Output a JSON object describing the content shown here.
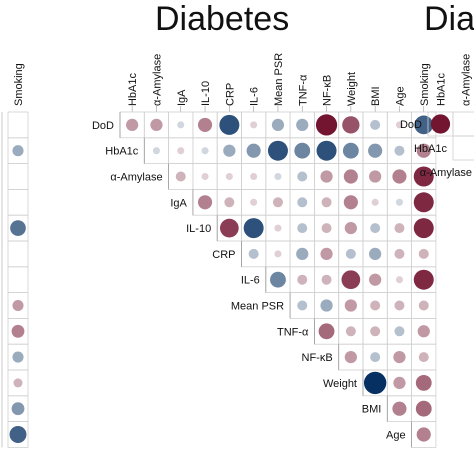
{
  "titles": {
    "center": "Diabetes",
    "right": "Dia"
  },
  "chart_data": {
    "type": "heatmap",
    "title": "Diabetes",
    "variables": [
      "DoD",
      "HbA1c",
      "α-Amylase",
      "IgA",
      "IL-10",
      "CRP",
      "IL-6",
      "Mean PSR",
      "TNF-α",
      "NF-κB",
      "Weight",
      "BMI",
      "Age",
      "Smoking"
    ],
    "column_labels": [
      "HbA1c",
      "α-Amylase",
      "IgA",
      "IL-10",
      "CRP",
      "IL-6",
      "Mean PSR",
      "TNF-α",
      "NF-κB",
      "Weight",
      "BMI",
      "Age",
      "Smoking"
    ],
    "row_labels": [
      "DoD",
      "HbA1c",
      "α-Amylase",
      "IgA",
      "IL-10",
      "CRP",
      "IL-6",
      "Mean PSR",
      "TNF-α",
      "NF-κB",
      "Weight",
      "BMI",
      "Age"
    ],
    "correlations": [
      [
        0.3,
        0.3,
        -0.1,
        0.4,
        -0.8,
        0.1,
        -0.3,
        -0.3,
        0.9,
        0.6,
        -0.2,
        0.1,
        -0.7
      ],
      [
        null,
        -0.1,
        0.1,
        -0.1,
        -0.3,
        -0.4,
        -0.8,
        -0.5,
        -0.8,
        -0.5,
        -0.4,
        -0.2,
        0.4
      ],
      [
        null,
        null,
        0.2,
        0.1,
        0.1,
        0.1,
        -0.1,
        -0.2,
        0.3,
        0.4,
        0.3,
        0.4,
        0.8
      ],
      [
        null,
        null,
        null,
        0.4,
        0.2,
        0.1,
        0.2,
        -0.2,
        0.2,
        0.4,
        0.1,
        -0.1,
        0.8
      ],
      [
        null,
        null,
        null,
        null,
        0.7,
        -0.8,
        0.1,
        -0.2,
        0.2,
        0.3,
        -0.2,
        0.2,
        0.8
      ],
      [
        null,
        null,
        null,
        null,
        null,
        -0.2,
        0.1,
        -0.3,
        0.3,
        -0.2,
        -0.3,
        0.2,
        0.2
      ],
      [
        null,
        null,
        null,
        null,
        null,
        null,
        -0.5,
        0.2,
        0.2,
        0.7,
        0.3,
        0.1,
        0.8
      ],
      [
        null,
        null,
        null,
        null,
        null,
        null,
        null,
        -0.2,
        -0.3,
        0.3,
        0.2,
        0.2,
        0.2
      ],
      [
        null,
        null,
        null,
        null,
        null,
        null,
        null,
        null,
        0.5,
        0.2,
        0.2,
        -0.2,
        0.3
      ],
      [
        null,
        null,
        null,
        null,
        null,
        null,
        null,
        null,
        null,
        0.3,
        -0.2,
        0.3,
        0.2
      ],
      [
        null,
        null,
        null,
        null,
        null,
        null,
        null,
        null,
        null,
        null,
        -1.0,
        0.3,
        0.5
      ],
      [
        null,
        null,
        null,
        null,
        null,
        null,
        null,
        null,
        null,
        null,
        null,
        0.4,
        0.5
      ],
      [
        null,
        null,
        null,
        null,
        null,
        null,
        null,
        null,
        null,
        null,
        null,
        null,
        0.4
      ]
    ],
    "color_scale": {
      "negative": "#053061",
      "neutral": "#f7f7f7",
      "positive": "#67001f"
    }
  },
  "left_fragment": {
    "column_label": "Smoking",
    "correlations": [
      null,
      -0.3,
      null,
      null,
      -0.6,
      null,
      null,
      0.3,
      0.4,
      -0.3,
      0.2,
      -0.4,
      -0.7
    ]
  },
  "right_fragment": {
    "column_labels": [
      "HbA1c",
      "α-Amylase"
    ],
    "row_labels": [
      "DoD",
      "HbA1c",
      "α-Amylase"
    ],
    "correlations": [
      [
        0.9,
        null
      ],
      [
        null,
        0.5
      ]
    ]
  }
}
